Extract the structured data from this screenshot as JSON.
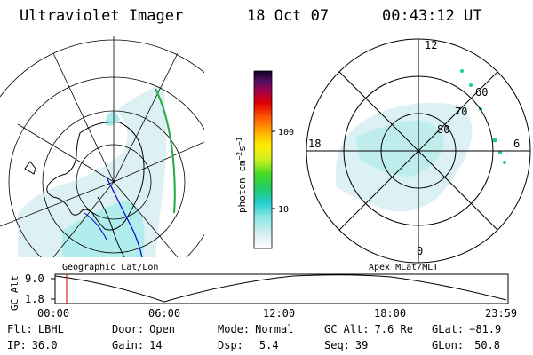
{
  "header": {
    "title": "Ultraviolet Imager",
    "date": "18 Oct 07",
    "time": "00:43:12 UT"
  },
  "colorbar": {
    "unit": "photon cm",
    "unit_exp1": "−2",
    "unit_s": "s",
    "unit_exp2": "−1",
    "ticks": [
      "100",
      "10"
    ]
  },
  "polar_plot": {
    "labels": [
      "12",
      "18",
      "6",
      "0"
    ],
    "lat_labels": [
      "60",
      "70",
      "80"
    ]
  },
  "map_labels": {
    "left": "Geographic Lat/Lon",
    "right": "Apex MLat/MLT"
  },
  "orbit": {
    "axis_title": "GC Alt",
    "y_ticks": [
      "9.0",
      "1.8"
    ],
    "x_ticks": [
      "00:00",
      "06:00",
      "12:00",
      "18:00",
      "23:59"
    ],
    "current_time_marker": "00:43"
  },
  "info": {
    "flt_label": "Flt:",
    "flt_value": "LBHL",
    "ip_label": "IP:",
    "ip_value": "36.0",
    "door_label": "Door:",
    "door_value": "Open",
    "gain_label": "Gain:",
    "gain_value": "14",
    "mode_label": "Mode:",
    "mode_value": "Normal",
    "dsp_label": "Dsp:",
    "dsp_value": "5.4",
    "gcalt_label": "GC Alt:",
    "gcalt_value": "7.6 Re",
    "seq_label": "Seq:",
    "seq_value": "39",
    "glat_label": "GLat:",
    "glat_value": "−81.9",
    "glon_label": "GLon:",
    "glon_value": "50.8"
  },
  "colors": {
    "auroral_emission": "#b9f0f0",
    "trace_green": "#22aa44",
    "trace_blue": "#0000cc",
    "marker_red": "#cc0000"
  }
}
